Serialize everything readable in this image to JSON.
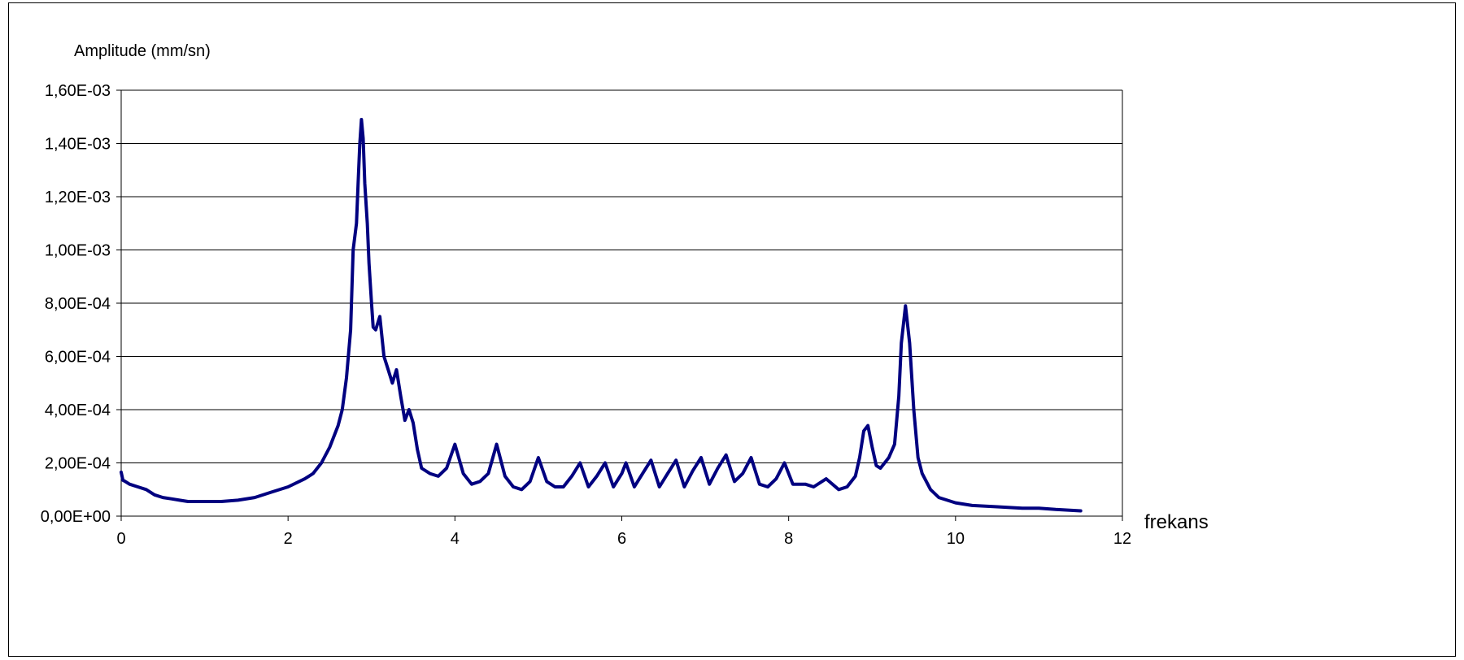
{
  "chart_data": {
    "type": "line",
    "title": "",
    "ylabel": "Amplitude (mm/sn)",
    "xlabel": "frekans",
    "xlim": [
      0,
      12
    ],
    "ylim": [
      0,
      0.0016
    ],
    "x_ticks": [
      0,
      2,
      4,
      6,
      8,
      10,
      12
    ],
    "x_tick_labels": [
      "0",
      "2",
      "4",
      "6",
      "8",
      "10",
      "12"
    ],
    "y_ticks": [
      0,
      0.0002,
      0.0004,
      0.0006,
      0.0008,
      0.001,
      0.0012,
      0.0014,
      0.0016
    ],
    "y_tick_labels": [
      "0,00E+00",
      "2,00E-04",
      "4,00E-04",
      "6,00E-04",
      "8,00E-04",
      "1,00E-03",
      "1,20E-03",
      "1,40E-03",
      "1,60E-03"
    ],
    "grid": "horizontal",
    "legend": "none",
    "series": [
      {
        "color": "#000080",
        "points": [
          [
            0.0,
            0.000165
          ],
          [
            0.02,
            0.000135
          ],
          [
            0.05,
            0.00013
          ],
          [
            0.1,
            0.00012
          ],
          [
            0.2,
            0.00011
          ],
          [
            0.3,
            0.0001
          ],
          [
            0.4,
            8e-05
          ],
          [
            0.5,
            7e-05
          ],
          [
            0.6,
            6.5e-05
          ],
          [
            0.7,
            6e-05
          ],
          [
            0.8,
            5.5e-05
          ],
          [
            1.0,
            5.5e-05
          ],
          [
            1.2,
            5.5e-05
          ],
          [
            1.4,
            6e-05
          ],
          [
            1.6,
            7e-05
          ],
          [
            1.8,
            9e-05
          ],
          [
            2.0,
            0.00011
          ],
          [
            2.2,
            0.00014
          ],
          [
            2.3,
            0.00016
          ],
          [
            2.4,
            0.0002
          ],
          [
            2.5,
            0.00026
          ],
          [
            2.6,
            0.00034
          ],
          [
            2.65,
            0.0004
          ],
          [
            2.7,
            0.00052
          ],
          [
            2.75,
            0.0007
          ],
          [
            2.78,
            0.001
          ],
          [
            2.82,
            0.0011
          ],
          [
            2.84,
            0.00125
          ],
          [
            2.86,
            0.0014
          ],
          [
            2.88,
            0.00149
          ],
          [
            2.9,
            0.00142
          ],
          [
            2.92,
            0.00125
          ],
          [
            2.95,
            0.0011
          ],
          [
            2.97,
            0.00095
          ],
          [
            3.0,
            0.0008
          ],
          [
            3.02,
            0.00071
          ],
          [
            3.05,
            0.0007
          ],
          [
            3.1,
            0.00075
          ],
          [
            3.15,
            0.0006
          ],
          [
            3.2,
            0.00055
          ],
          [
            3.25,
            0.0005
          ],
          [
            3.3,
            0.00055
          ],
          [
            3.35,
            0.00045
          ],
          [
            3.4,
            0.00036
          ],
          [
            3.45,
            0.0004
          ],
          [
            3.5,
            0.00035
          ],
          [
            3.55,
            0.00025
          ],
          [
            3.6,
            0.00018
          ],
          [
            3.7,
            0.00016
          ],
          [
            3.8,
            0.00015
          ],
          [
            3.9,
            0.00018
          ],
          [
            4.0,
            0.00027
          ],
          [
            4.1,
            0.00016
          ],
          [
            4.2,
            0.00012
          ],
          [
            4.3,
            0.00013
          ],
          [
            4.4,
            0.00016
          ],
          [
            4.5,
            0.00027
          ],
          [
            4.6,
            0.00015
          ],
          [
            4.7,
            0.00011
          ],
          [
            4.8,
            0.0001
          ],
          [
            4.9,
            0.00013
          ],
          [
            5.0,
            0.00022
          ],
          [
            5.1,
            0.00013
          ],
          [
            5.2,
            0.00011
          ],
          [
            5.3,
            0.00011
          ],
          [
            5.4,
            0.00015
          ],
          [
            5.5,
            0.0002
          ],
          [
            5.6,
            0.00011
          ],
          [
            5.7,
            0.00015
          ],
          [
            5.8,
            0.0002
          ],
          [
            5.9,
            0.00011
          ],
          [
            6.0,
            0.00016
          ],
          [
            6.05,
            0.0002
          ],
          [
            6.15,
            0.00011
          ],
          [
            6.25,
            0.00016
          ],
          [
            6.35,
            0.00021
          ],
          [
            6.45,
            0.00011
          ],
          [
            6.55,
            0.00016
          ],
          [
            6.65,
            0.00021
          ],
          [
            6.75,
            0.00011
          ],
          [
            6.85,
            0.00017
          ],
          [
            6.95,
            0.00022
          ],
          [
            7.05,
            0.00012
          ],
          [
            7.15,
            0.00018
          ],
          [
            7.25,
            0.00023
          ],
          [
            7.35,
            0.00013
          ],
          [
            7.45,
            0.00016
          ],
          [
            7.55,
            0.00022
          ],
          [
            7.65,
            0.00012
          ],
          [
            7.75,
            0.00011
          ],
          [
            7.85,
            0.00014
          ],
          [
            7.95,
            0.0002
          ],
          [
            8.05,
            0.00012
          ],
          [
            8.2,
            0.00012
          ],
          [
            8.3,
            0.00011
          ],
          [
            8.45,
            0.00014
          ],
          [
            8.6,
            0.0001
          ],
          [
            8.7,
            0.00011
          ],
          [
            8.8,
            0.00015
          ],
          [
            8.85,
            0.00022
          ],
          [
            8.9,
            0.00032
          ],
          [
            8.95,
            0.00034
          ],
          [
            9.0,
            0.00026
          ],
          [
            9.05,
            0.00019
          ],
          [
            9.1,
            0.00018
          ],
          [
            9.2,
            0.00022
          ],
          [
            9.27,
            0.00027
          ],
          [
            9.32,
            0.00045
          ],
          [
            9.35,
            0.00065
          ],
          [
            9.4,
            0.00079
          ],
          [
            9.45,
            0.00065
          ],
          [
            9.5,
            0.0004
          ],
          [
            9.55,
            0.00022
          ],
          [
            9.6,
            0.00016
          ],
          [
            9.7,
            0.0001
          ],
          [
            9.8,
            7e-05
          ],
          [
            9.9,
            6e-05
          ],
          [
            10.0,
            5e-05
          ],
          [
            10.2,
            4e-05
          ],
          [
            10.5,
            3.5e-05
          ],
          [
            10.8,
            3e-05
          ],
          [
            11.0,
            3e-05
          ],
          [
            11.2,
            2.5e-05
          ],
          [
            11.5,
            2e-05
          ]
        ]
      }
    ]
  }
}
